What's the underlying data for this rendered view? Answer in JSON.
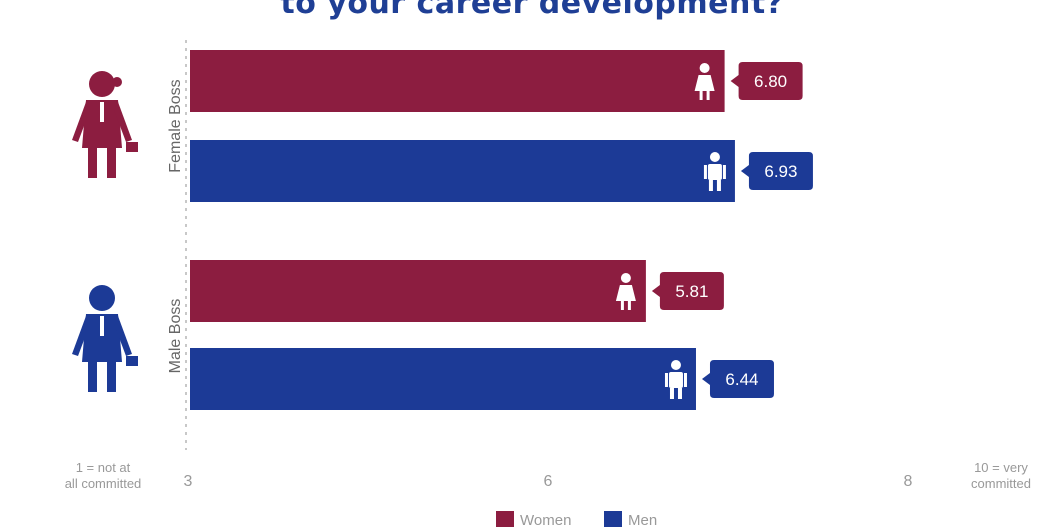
{
  "title": "to your career development?",
  "chart_data": {
    "type": "bar",
    "orientation": "horizontal",
    "groups": [
      "Female Boss",
      "Male Boss"
    ],
    "series": [
      {
        "name": "Women",
        "color": "#8c1d40",
        "icon": "woman-icon",
        "values": [
          6.8,
          5.81
        ]
      },
      {
        "name": "Men",
        "color": "#1c3a96",
        "icon": "man-icon",
        "values": [
          6.93,
          6.44
        ]
      }
    ],
    "value_labels": [
      [
        "6.80",
        "5.81"
      ],
      [
        "6.93",
        "6.44"
      ]
    ],
    "group_icons": [
      "female-boss-icon",
      "male-boss-icon"
    ],
    "xticks": [
      "3",
      "6",
      "8"
    ],
    "scale_left_label": "1 = not at all committed",
    "scale_right_label": "10 = very committed",
    "xlim": [
      1,
      10
    ],
    "grid": false,
    "legend_position": "bottom-center"
  }
}
